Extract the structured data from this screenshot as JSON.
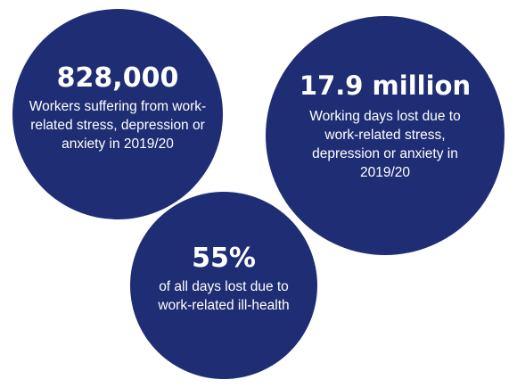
{
  "theme": {
    "circle_color": "#1f2d74",
    "text_color": "#ffffff",
    "background": "#ffffff"
  },
  "stats": [
    {
      "value": "828,000",
      "description": "Workers suffering from work-related stress, depression or anxiety in 2019/20"
    },
    {
      "value": "17.9 million",
      "description": "Working days lost due to work-related stress, depression or anxiety in 2019/20"
    },
    {
      "value": "55%",
      "description": "of all days lost due to work-related ill-health"
    }
  ]
}
